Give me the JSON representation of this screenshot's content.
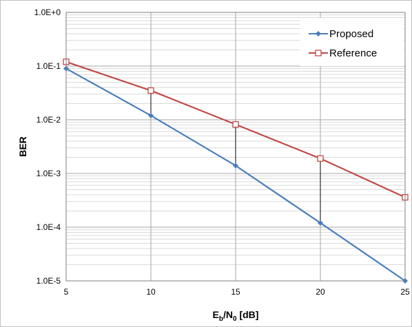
{
  "chart_data": {
    "type": "line",
    "title": "",
    "xlabel_parts": {
      "main1": "E",
      "sub1": "b",
      "main2": "/N",
      "sub2": "0",
      "main3": " [dB]"
    },
    "ylabel": "BER",
    "x_ticks": [
      "5",
      "10",
      "15",
      "20",
      "25"
    ],
    "y_ticks": [
      "1.0E-5",
      "1.0E-4",
      "1.0E-3",
      "1.0E-2",
      "1.0E-1",
      "1.0E+0"
    ],
    "xlim": [
      5,
      25
    ],
    "ylim": [
      1e-05,
      1
    ],
    "y_scale": "log",
    "grid": "on (major and minor horizontal, major vertical)",
    "legend_position": "top-right",
    "x": [
      5,
      10,
      15,
      20,
      25
    ],
    "series": [
      {
        "name": "Proposed",
        "values": [
          0.09,
          0.012,
          0.0014,
          0.00012,
          1e-05
        ],
        "color": "#4a7ebb",
        "marker": "diamond"
      },
      {
        "name": "Reference",
        "values": [
          0.12,
          0.035,
          0.0082,
          0.0019,
          0.00036
        ],
        "color": "#be4b48",
        "marker": "square"
      }
    ],
    "annotations": "vertical connector lines between series at x = 10, 15, 20"
  }
}
